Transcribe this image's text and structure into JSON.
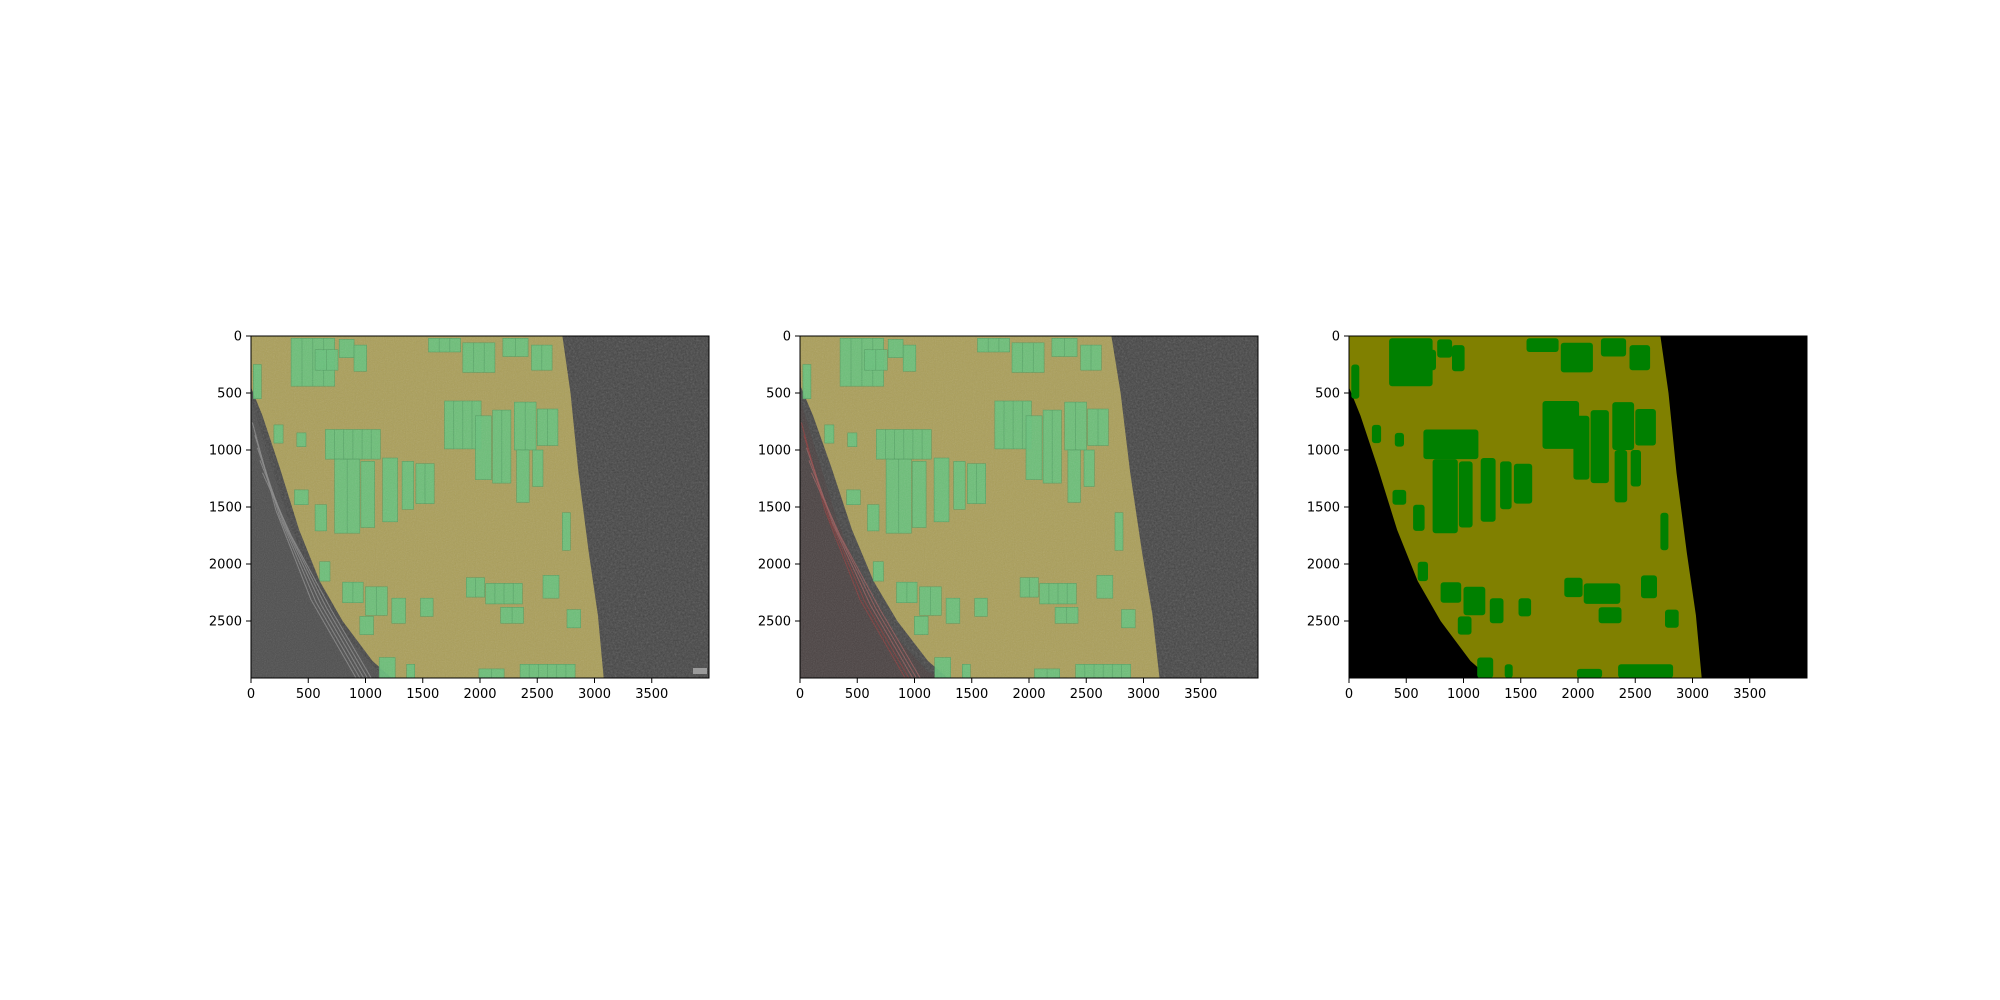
{
  "figure": {
    "panels": [
      {
        "name": "overlay-original",
        "variant": "photo-overlay-a"
      },
      {
        "name": "overlay-prediction",
        "variant": "photo-overlay-b"
      },
      {
        "name": "segmentation-mask",
        "variant": "mask"
      }
    ],
    "x_ticks": [
      "0",
      "500",
      "1000",
      "1500",
      "2000",
      "2500",
      "3000",
      "3500"
    ],
    "x_tick_values": [
      0,
      500,
      1000,
      1500,
      2000,
      2500,
      3000,
      3500
    ],
    "y_ticks": [
      "0",
      "500",
      "1000",
      "1500",
      "2000",
      "2500"
    ],
    "y_tick_values": [
      0,
      500,
      1000,
      1500,
      2000,
      2500
    ],
    "x_range": [
      0,
      4000
    ],
    "y_range": [
      0,
      3000
    ],
    "colors": {
      "mask_ground": "#808000",
      "mask_object": "#008000",
      "mask_background": "#000000",
      "overlay_ground": "#b8ab5c",
      "overlay_object": "#67c27b",
      "photo_dark": "#3b3b3b",
      "road": "#5a5a5a"
    }
  }
}
